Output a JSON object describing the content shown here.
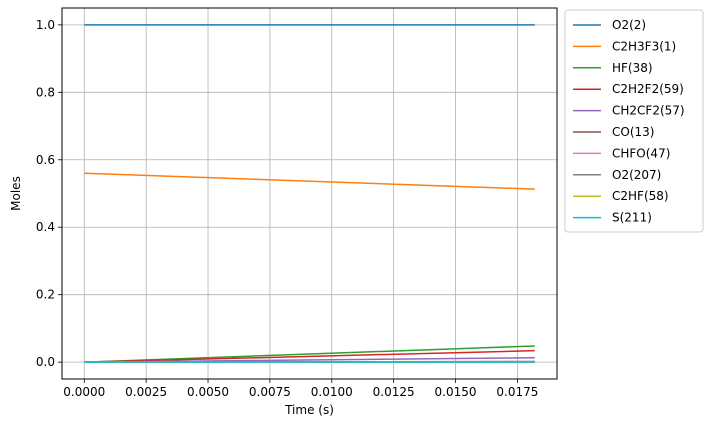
{
  "chart_data": {
    "type": "line",
    "xlabel": "Time  (s)",
    "ylabel": "Moles",
    "xlim": [
      -0.0009,
      0.0191
    ],
    "ylim": [
      -0.05,
      1.05
    ],
    "xticks": [
      0.0,
      0.0025,
      0.005,
      0.0075,
      0.01,
      0.0125,
      0.015,
      0.0175
    ],
    "xtick_labels": [
      "0.0000",
      "0.0025",
      "0.0050",
      "0.0075",
      "0.0100",
      "0.0125",
      "0.0150",
      "0.0175"
    ],
    "yticks": [
      0.0,
      0.2,
      0.4,
      0.6,
      0.8,
      1.0
    ],
    "ytick_labels": [
      "0.0",
      "0.2",
      "0.4",
      "0.6",
      "0.8",
      "1.0"
    ],
    "grid": true,
    "legend_position": "outside-right",
    "x": [
      0.0,
      0.0182
    ],
    "series": [
      {
        "name": "O2(2)",
        "color": "#1f77b4",
        "values": [
          1.0,
          1.0
        ]
      },
      {
        "name": "C2H3F3(1)",
        "color": "#ff7f0e",
        "values": [
          0.56,
          0.513
        ]
      },
      {
        "name": "HF(38)",
        "color": "#2ca02c",
        "values": [
          0.0,
          0.048
        ]
      },
      {
        "name": "C2H2F2(59)",
        "color": "#d62728",
        "values": [
          0.0,
          0.034
        ]
      },
      {
        "name": "CH2CF2(57)",
        "color": "#9467bd",
        "values": [
          0.0,
          0.013
        ]
      },
      {
        "name": "CO(13)",
        "color": "#8c564b",
        "values": [
          0.0,
          0.002
        ]
      },
      {
        "name": "CHFO(47)",
        "color": "#e377c2",
        "values": [
          0.0,
          0.001
        ]
      },
      {
        "name": "O2(207)",
        "color": "#7f7f7f",
        "values": [
          0.0,
          0.0005
        ]
      },
      {
        "name": "C2HF(58)",
        "color": "#bcbd22",
        "values": [
          0.0,
          0.0003
        ]
      },
      {
        "name": "S(211)",
        "color": "#17becf",
        "values": [
          0.0,
          0.0002
        ]
      }
    ]
  }
}
